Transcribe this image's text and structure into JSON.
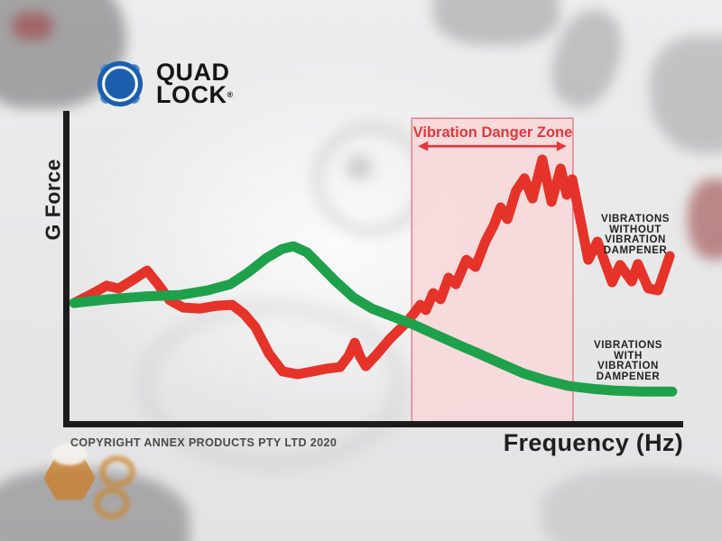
{
  "logo": {
    "brand": "Quad Lock",
    "word1": "QUAD",
    "word2": "LOCK",
    "registered_mark": "®",
    "brand_blue": "#1b5fae",
    "brand_blue_light": "#4d8cc7"
  },
  "chart": {
    "y_axis_label": "G Force",
    "x_axis_label": "Frequency (Hz)",
    "danger_zone_label": "Vibration Danger Zone",
    "series_label_without": "VIBRATIONS\nWITHOUT\nVIBRATION\nDAMPENER",
    "series_label_with": "VIBRATIONS\nWITH\nVIBRATION\nDAMPENER"
  },
  "copyright": "COPYRIGHT ANNEX PRODUCTS PTY LTD 2020",
  "colors": {
    "red_line": "#e53329",
    "green_line": "#1fa14b",
    "zone_fill": "#f8d8da",
    "zone_border": "#e0888d",
    "zone_text": "#e2373b",
    "axis": "#1c1c1c"
  },
  "chart_data": {
    "type": "line",
    "title": "",
    "xlabel": "Frequency (Hz)",
    "ylabel": "G Force",
    "x_units": "relative frequency, unlabeled axis (0-100)",
    "y_units": "relative G force, unlabeled axis (0-100)",
    "grid": false,
    "legend_position": "right-inline-annotations",
    "danger_zone_x": [
      56.0,
      82.3
    ],
    "danger_zone_y_top": 98.2,
    "annotations": [
      {
        "text": "Vibration Danger Zone",
        "x": 69.1,
        "y": 93.5
      },
      {
        "text": "VIBRATIONS WITHOUT VIBRATION DAMPENER",
        "x": 92.3,
        "y": 61.0
      },
      {
        "text": "VIBRATIONS WITH VIBRATION DAMPENER",
        "x": 91.2,
        "y": 20.0
      }
    ],
    "series": [
      {
        "name": "Vibrations without vibration dampener",
        "color": "#e53329",
        "points": [
          [
            0.9,
            38.3
          ],
          [
            3.5,
            40.9
          ],
          [
            6.2,
            43.9
          ],
          [
            8.2,
            43.0
          ],
          [
            10.6,
            45.9
          ],
          [
            12.8,
            48.8
          ],
          [
            14.6,
            44.4
          ],
          [
            16.5,
            39.2
          ],
          [
            18.7,
            36.8
          ],
          [
            21.5,
            36.5
          ],
          [
            24.2,
            37.4
          ],
          [
            26.7,
            37.7
          ],
          [
            28.6,
            34.8
          ],
          [
            30.5,
            30.4
          ],
          [
            32.7,
            21.9
          ],
          [
            34.9,
            16.1
          ],
          [
            37.4,
            15.2
          ],
          [
            39.9,
            16.1
          ],
          [
            42.1,
            17.0
          ],
          [
            44.3,
            17.5
          ],
          [
            45.7,
            21.1
          ],
          [
            46.7,
            25.4
          ],
          [
            47.6,
            20.8
          ],
          [
            48.5,
            17.8
          ],
          [
            50.4,
            21.9
          ],
          [
            52.4,
            26.6
          ],
          [
            54.8,
            31.3
          ],
          [
            56.3,
            34.8
          ],
          [
            57.4,
            37.7
          ],
          [
            58.3,
            36.0
          ],
          [
            59.5,
            41.5
          ],
          [
            60.7,
            39.5
          ],
          [
            62.0,
            46.5
          ],
          [
            63.2,
            44.4
          ],
          [
            64.9,
            52.3
          ],
          [
            66.4,
            50.0
          ],
          [
            68.0,
            58.2
          ],
          [
            69.4,
            63.5
          ],
          [
            70.5,
            69.3
          ],
          [
            71.6,
            65.5
          ],
          [
            73.0,
            74.6
          ],
          [
            74.4,
            78.7
          ],
          [
            75.7,
            72.2
          ],
          [
            77.3,
            84.8
          ],
          [
            78.8,
            71.1
          ],
          [
            80.3,
            81.9
          ],
          [
            81.3,
            73.4
          ],
          [
            82.2,
            78.4
          ],
          [
            83.5,
            65.5
          ],
          [
            84.8,
            52.3
          ],
          [
            86.3,
            58.2
          ],
          [
            88.7,
            45.0
          ],
          [
            90.0,
            50.6
          ],
          [
            91.9,
            45.3
          ],
          [
            92.9,
            50.9
          ],
          [
            94.6,
            43.0
          ],
          [
            96.2,
            42.4
          ],
          [
            98.1,
            53.5
          ]
        ]
      },
      {
        "name": "Vibrations with vibration dampener",
        "color": "#1fa14b",
        "points": [
          [
            0.9,
            38.3
          ],
          [
            6.5,
            39.5
          ],
          [
            12.4,
            40.4
          ],
          [
            18.3,
            40.9
          ],
          [
            22.7,
            42.4
          ],
          [
            26.4,
            44.4
          ],
          [
            29.3,
            48.2
          ],
          [
            32.3,
            52.9
          ],
          [
            34.8,
            55.8
          ],
          [
            36.7,
            56.7
          ],
          [
            38.9,
            54.7
          ],
          [
            41.1,
            50.3
          ],
          [
            43.6,
            45.3
          ],
          [
            46.5,
            40.1
          ],
          [
            49.5,
            36.5
          ],
          [
            52.9,
            33.9
          ],
          [
            56.3,
            31.3
          ],
          [
            59.5,
            28.4
          ],
          [
            63.2,
            25.1
          ],
          [
            66.9,
            21.9
          ],
          [
            70.5,
            18.7
          ],
          [
            74.2,
            15.5
          ],
          [
            77.9,
            13.2
          ],
          [
            81.6,
            11.4
          ],
          [
            85.3,
            10.5
          ],
          [
            88.9,
            9.9
          ],
          [
            93.4,
            9.6
          ],
          [
            98.5,
            9.6
          ]
        ]
      }
    ]
  }
}
